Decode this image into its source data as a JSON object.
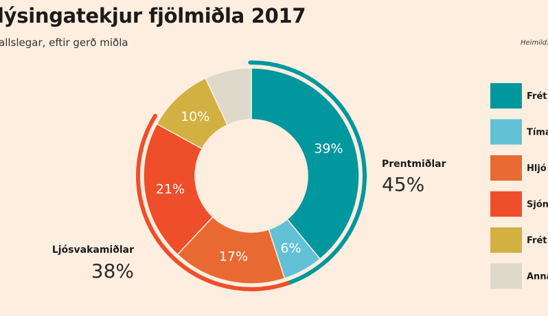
{
  "header": {
    "title": "lýsingatekjur fjölmiðla 2017",
    "subtitle": "allslegar, eftir gerð miðla",
    "source": "Heimild:"
  },
  "chart_data": {
    "type": "pie",
    "donut": true,
    "title": "lýsingatekjur fjölmiðla 2017",
    "subtitle": "allslegar, eftir gerð miðla",
    "slices": [
      {
        "legend": "Frét",
        "value": 39,
        "label": "39%",
        "color": "#00979e"
      },
      {
        "legend": "Tíma",
        "value": 6,
        "label": "6%",
        "color": "#62c1d6"
      },
      {
        "legend": "Hljó",
        "value": 17,
        "label": "17%",
        "color": "#e86a32"
      },
      {
        "legend": "Sjón",
        "value": 21,
        "label": "21%",
        "color": "#ef4e2a"
      },
      {
        "legend": "Frét",
        "value": 10,
        "label": "10%",
        "color": "#d2b042"
      },
      {
        "legend": "Anna",
        "value": 7,
        "label": "",
        "color": "#ded9cb"
      }
    ],
    "groups": [
      {
        "name": "Prentmiðlar",
        "value": 45,
        "label": "45%",
        "color": "#00979e",
        "slices": [
          0,
          1
        ]
      },
      {
        "name": "Ljósvakamiðlar",
        "value": 38,
        "label": "38%",
        "color": "#ef4e2a",
        "slices": [
          2,
          3
        ]
      }
    ],
    "legend_position": "right"
  }
}
